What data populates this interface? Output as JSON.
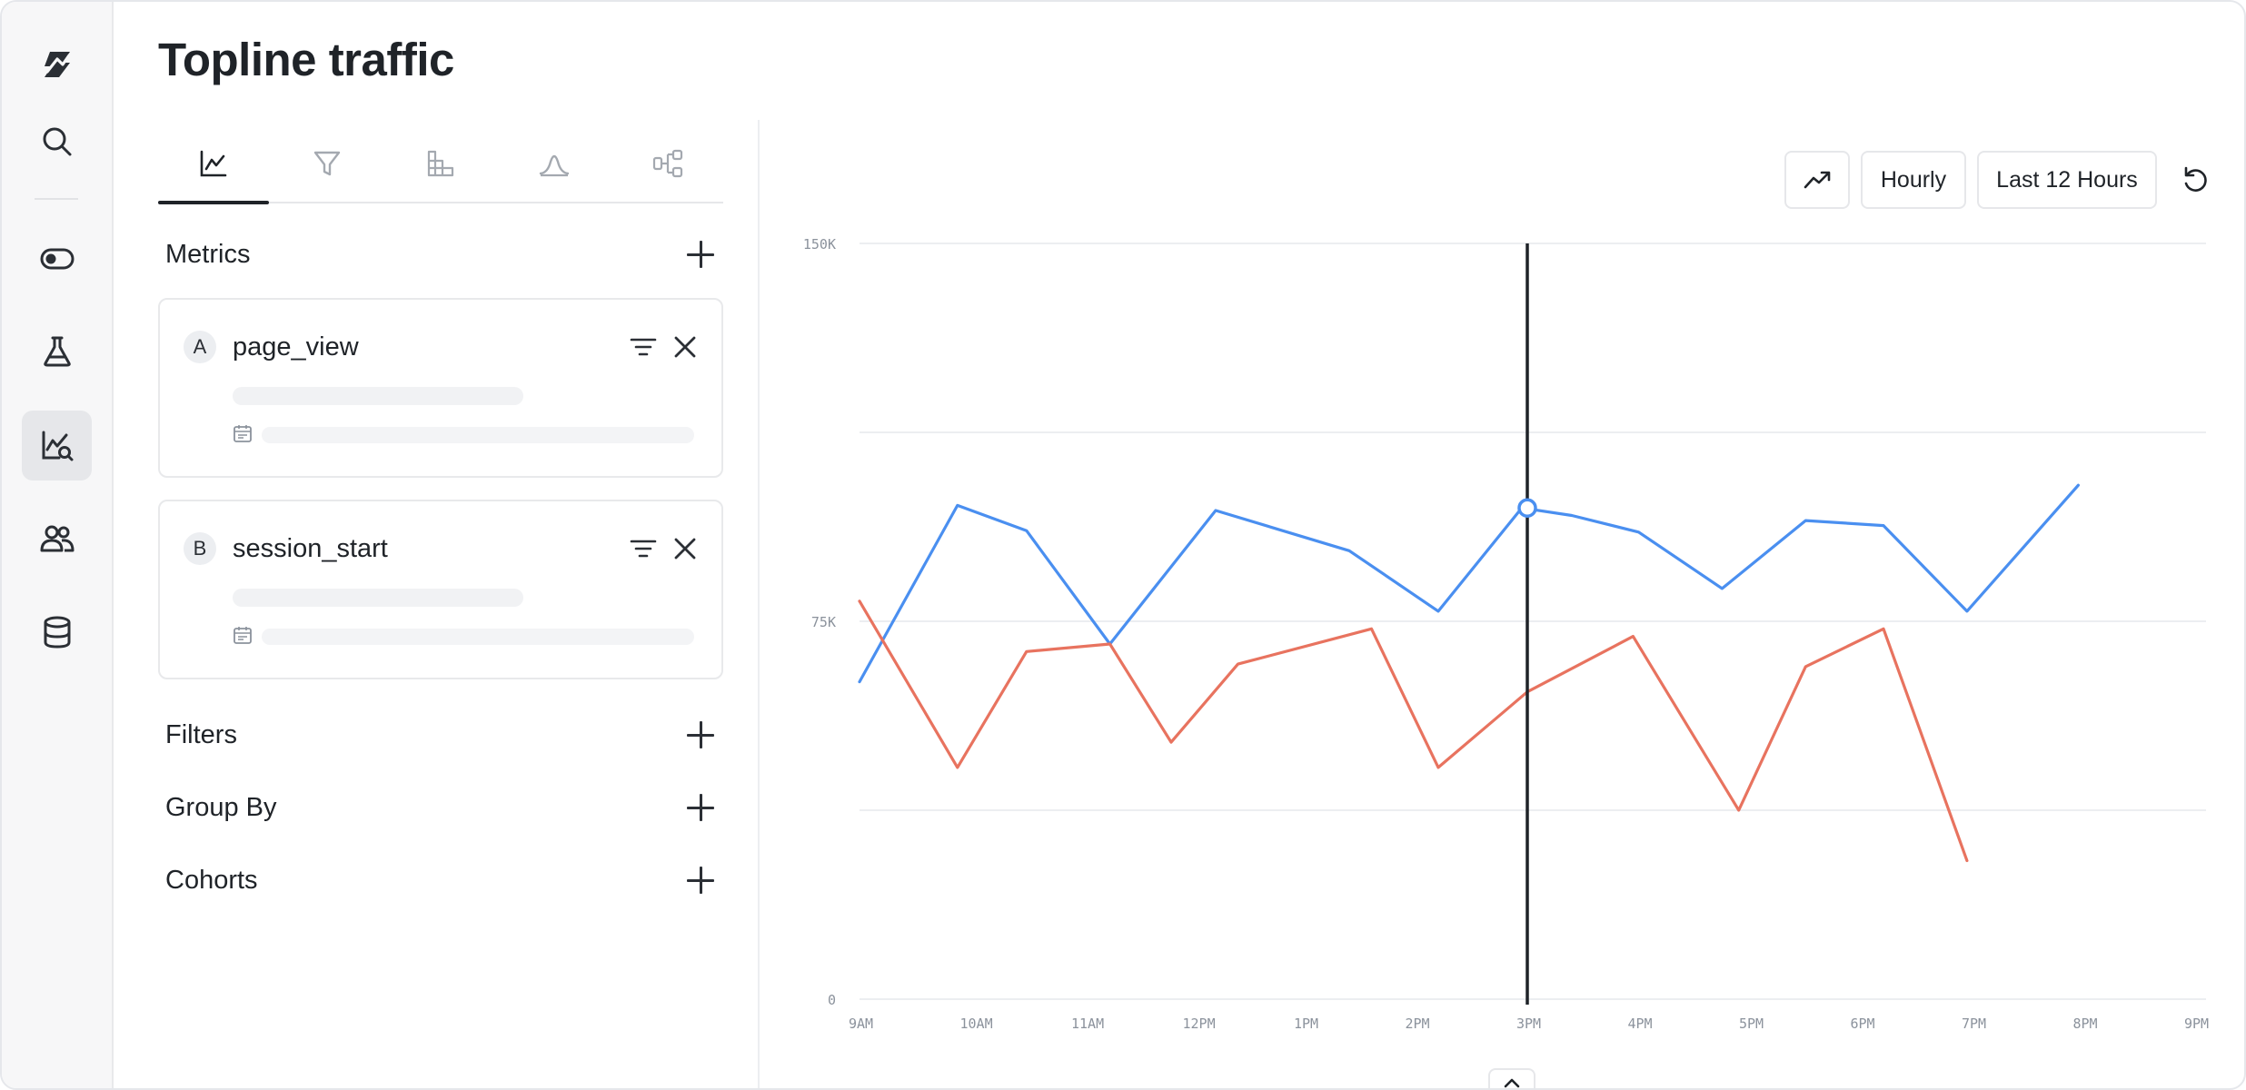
{
  "page": {
    "title": "Topline traffic"
  },
  "rail": {
    "items": [
      {
        "icon": "logo-icon"
      },
      {
        "icon": "search-icon"
      },
      {
        "icon": "toggle-icon"
      },
      {
        "icon": "flask-icon"
      },
      {
        "icon": "chart-search-icon",
        "active": true
      },
      {
        "icon": "users-icon"
      },
      {
        "icon": "database-icon"
      }
    ]
  },
  "panel": {
    "tabs": [
      {
        "icon": "line-chart-icon",
        "active": true
      },
      {
        "icon": "funnel-icon"
      },
      {
        "icon": "retention-grid-icon"
      },
      {
        "icon": "distribution-icon"
      },
      {
        "icon": "flow-icon"
      }
    ],
    "metrics_label": "Metrics",
    "metrics": [
      {
        "badge": "A",
        "name": "page_view"
      },
      {
        "badge": "B",
        "name": "session_start"
      }
    ],
    "filters_label": "Filters",
    "group_by_label": "Group By",
    "cohorts_label": "Cohorts"
  },
  "controls": {
    "chart_type_icon": "trend-icon",
    "interval": "Hourly",
    "range": "Last 12 Hours",
    "refresh_icon": "refresh-icon"
  },
  "chart_data": {
    "type": "line",
    "x_ticks": [
      "9AM",
      "10AM",
      "11AM",
      "12PM",
      "1PM",
      "2PM",
      "3PM",
      "4PM",
      "5PM",
      "6PM",
      "7PM",
      "8PM",
      "9PM"
    ],
    "y_ticks": [
      "0",
      "75K",
      "150K"
    ],
    "ylim": [
      0,
      150000
    ],
    "grid": true,
    "series": [
      {
        "color": "#4a8ff0",
        "points": [
          [
            9.0,
            63000
          ],
          [
            9.88,
            98000
          ],
          [
            10.5,
            93000
          ],
          [
            11.25,
            70500
          ],
          [
            12.2,
            97000
          ],
          [
            13.4,
            89000
          ],
          [
            14.2,
            77000
          ],
          [
            14.95,
            97500
          ],
          [
            15.4,
            96000
          ],
          [
            16.0,
            92700
          ],
          [
            16.75,
            81500
          ],
          [
            17.5,
            95000
          ],
          [
            18.2,
            94000
          ],
          [
            18.95,
            77000
          ],
          [
            19.95,
            102000
          ]
        ]
      },
      {
        "color": "#e8735f",
        "points": [
          [
            9.0,
            79000
          ],
          [
            9.88,
            46000
          ],
          [
            10.5,
            69000
          ],
          [
            11.25,
            70500
          ],
          [
            11.8,
            51000
          ],
          [
            12.4,
            66500
          ],
          [
            13.6,
            73500
          ],
          [
            14.2,
            46000
          ],
          [
            15.0,
            61000
          ],
          [
            15.95,
            72000
          ],
          [
            16.9,
            37500
          ],
          [
            17.5,
            66000
          ],
          [
            18.2,
            73500
          ],
          [
            18.95,
            27500
          ]
        ]
      }
    ],
    "cursor_x": 15.0,
    "cursor_point": 97500
  }
}
